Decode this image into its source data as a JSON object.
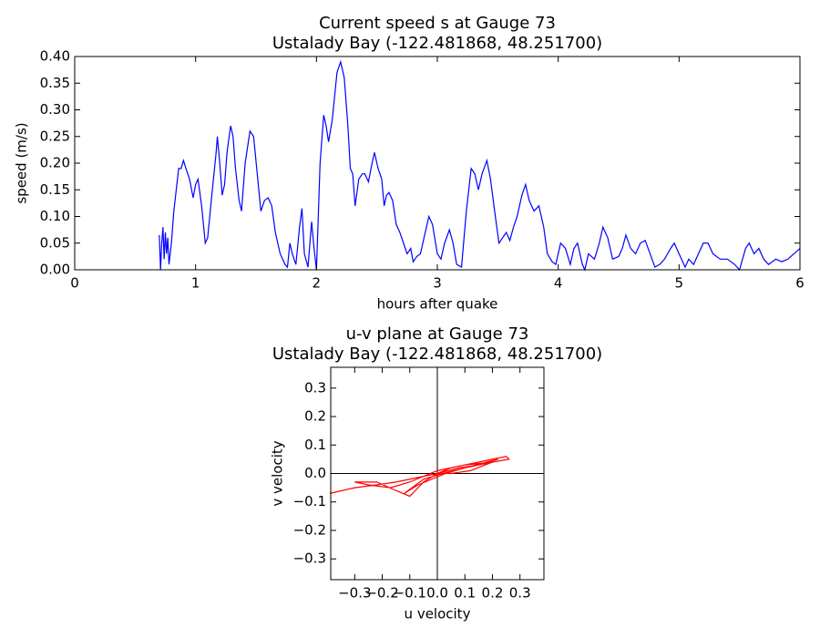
{
  "chart_data": [
    {
      "type": "line",
      "title": "Current speed s at Gauge 73",
      "subtitle": "Ustalady Bay  (-122.481868, 48.251700)",
      "xlabel": "hours after quake",
      "ylabel": "speed (m/s)",
      "color": "#0000ff",
      "xlim": [
        0,
        6
      ],
      "xticks": [
        0,
        1,
        2,
        3,
        4,
        5,
        6
      ],
      "ylim": [
        0,
        0.4
      ],
      "yticks": [
        {
          "value": 0,
          "label": "0.00"
        },
        0.05,
        {
          "value": 0.1,
          "label": "0.10"
        },
        0.15,
        {
          "value": 0.2,
          "label": "0.20"
        },
        0.25,
        {
          "value": 0.3,
          "label": "0.30"
        },
        0.35,
        {
          "value": 0.4,
          "label": "0.40"
        }
      ],
      "x": [
        0.7,
        0.71,
        0.72,
        0.73,
        0.74,
        0.75,
        0.76,
        0.77,
        0.78,
        0.8,
        0.82,
        0.84,
        0.86,
        0.88,
        0.9,
        0.92,
        0.95,
        0.98,
        1.0,
        1.02,
        1.05,
        1.08,
        1.1,
        1.13,
        1.17,
        1.18,
        1.2,
        1.22,
        1.24,
        1.26,
        1.29,
        1.31,
        1.33,
        1.36,
        1.38,
        1.41,
        1.45,
        1.48,
        1.51,
        1.54,
        1.57,
        1.6,
        1.63,
        1.66,
        1.7,
        1.74,
        1.76,
        1.78,
        1.8,
        1.83,
        1.86,
        1.88,
        1.9,
        1.93,
        1.96,
        1.98,
        2.0,
        2.03,
        2.06,
        2.08,
        2.1,
        2.13,
        2.17,
        2.2,
        2.23,
        2.26,
        2.28,
        2.3,
        2.32,
        2.35,
        2.38,
        2.4,
        2.43,
        2.46,
        2.48,
        2.51,
        2.54,
        2.56,
        2.58,
        2.6,
        2.63,
        2.66,
        2.69,
        2.72,
        2.75,
        2.78,
        2.8,
        2.83,
        2.86,
        2.9,
        2.93,
        2.96,
        3.0,
        3.03,
        3.06,
        3.1,
        3.13,
        3.16,
        3.2,
        3.24,
        3.28,
        3.31,
        3.34,
        3.37,
        3.41,
        3.44,
        3.48,
        3.51,
        3.54,
        3.57,
        3.6,
        3.63,
        3.66,
        3.7,
        3.73,
        3.76,
        3.8,
        3.84,
        3.88,
        3.91,
        3.95,
        3.98,
        4.02,
        4.06,
        4.1,
        4.13,
        4.16,
        4.2,
        4.22,
        4.25,
        4.3,
        4.34,
        4.37,
        4.41,
        4.45,
        4.5,
        4.53,
        4.56,
        4.6,
        4.64,
        4.68,
        4.72,
        4.76,
        4.8,
        4.84,
        4.88,
        4.93,
        4.96,
        5.0,
        5.05,
        5.08,
        5.12,
        5.16,
        5.2,
        5.24,
        5.28,
        5.34,
        5.4,
        5.46,
        5.5,
        5.55,
        5.58,
        5.62,
        5.66,
        5.7,
        5.74,
        5.8,
        5.85,
        5.9,
        5.95,
        6.0
      ],
      "values": [
        0.065,
        0.0,
        0.05,
        0.08,
        0.02,
        0.07,
        0.03,
        0.06,
        0.01,
        0.05,
        0.11,
        0.15,
        0.19,
        0.19,
        0.205,
        0.19,
        0.17,
        0.135,
        0.16,
        0.17,
        0.12,
        0.05,
        0.06,
        0.13,
        0.22,
        0.25,
        0.2,
        0.14,
        0.16,
        0.22,
        0.27,
        0.25,
        0.19,
        0.13,
        0.11,
        0.2,
        0.26,
        0.25,
        0.18,
        0.11,
        0.13,
        0.135,
        0.12,
        0.07,
        0.03,
        0.01,
        0.005,
        0.05,
        0.03,
        0.01,
        0.08,
        0.115,
        0.03,
        0.005,
        0.09,
        0.04,
        0.0,
        0.2,
        0.29,
        0.27,
        0.24,
        0.28,
        0.37,
        0.39,
        0.36,
        0.27,
        0.19,
        0.18,
        0.12,
        0.17,
        0.18,
        0.18,
        0.165,
        0.2,
        0.22,
        0.19,
        0.17,
        0.12,
        0.14,
        0.145,
        0.13,
        0.085,
        0.07,
        0.05,
        0.03,
        0.04,
        0.015,
        0.025,
        0.03,
        0.07,
        0.1,
        0.085,
        0.03,
        0.02,
        0.05,
        0.075,
        0.05,
        0.01,
        0.005,
        0.11,
        0.19,
        0.18,
        0.15,
        0.18,
        0.205,
        0.17,
        0.1,
        0.05,
        0.06,
        0.07,
        0.055,
        0.08,
        0.1,
        0.14,
        0.16,
        0.13,
        0.11,
        0.12,
        0.08,
        0.03,
        0.015,
        0.01,
        0.05,
        0.04,
        0.01,
        0.04,
        0.05,
        0.01,
        0.0,
        0.03,
        0.02,
        0.05,
        0.08,
        0.06,
        0.02,
        0.025,
        0.04,
        0.065,
        0.04,
        0.03,
        0.05,
        0.055,
        0.03,
        0.005,
        0.01,
        0.02,
        0.04,
        0.05,
        0.03,
        0.005,
        0.02,
        0.01,
        0.03,
        0.05,
        0.05,
        0.03,
        0.02,
        0.02,
        0.01,
        0.0,
        0.04,
        0.05,
        0.03,
        0.04,
        0.02,
        0.01,
        0.02,
        0.015,
        0.02,
        0.03,
        0.04
      ]
    },
    {
      "type": "line",
      "title": "u-v plane at Gauge 73",
      "subtitle": "Ustalady Bay  (-122.481868, 48.251700)",
      "xlabel": "u velocity",
      "ylabel": "v velocity",
      "color": "#ff0000",
      "xlim": [
        -0.387,
        0.387
      ],
      "xticks": [
        {
          "value": -0.3,
          "label": "−0.3"
        },
        {
          "value": -0.2,
          "label": "−0.2"
        },
        {
          "value": -0.1,
          "label": "−0.1"
        },
        {
          "value": 0,
          "label": "0.0"
        },
        0.1,
        0.2,
        0.3
      ],
      "ylim": [
        -0.373,
        0.373
      ],
      "yticks": [
        {
          "value": -0.3,
          "label": "−0.3"
        },
        {
          "value": -0.2,
          "label": "−0.2"
        },
        {
          "value": -0.1,
          "label": "−0.1"
        },
        {
          "value": 0,
          "label": "0.0"
        },
        0.1,
        0.2,
        0.3
      ],
      "x": [
        -0.39,
        -0.3,
        -0.22,
        -0.15,
        -0.1,
        -0.05,
        0,
        0.05,
        0.1,
        0.15,
        0.2,
        0.25,
        0.26,
        0.2,
        0.1,
        0.0,
        -0.05,
        -0.1,
        -0.17,
        -0.25,
        -0.3,
        -0.22,
        -0.15,
        -0.1,
        -0.05,
        0.0,
        0.08,
        0.15,
        0.22,
        0.18,
        0.1,
        0.03,
        -0.02,
        -0.07,
        -0.12,
        -0.05,
        0.02,
        0.1,
        0.2,
        0.12,
        0.05,
        0
      ],
      "values": [
        -0.07,
        -0.05,
        -0.04,
        -0.03,
        -0.02,
        -0.01,
        0.0,
        0.02,
        0.03,
        0.04,
        0.05,
        0.06,
        0.05,
        0.04,
        0.03,
        0.01,
        -0.01,
        -0.03,
        -0.05,
        -0.04,
        -0.03,
        -0.03,
        -0.06,
        -0.08,
        -0.03,
        0.0,
        0.02,
        0.03,
        0.05,
        0.04,
        0.02,
        0.0,
        -0.02,
        -0.04,
        -0.07,
        -0.02,
        0.0,
        0.02,
        0.04,
        0.01,
        0.0,
        0.0
      ]
    }
  ]
}
